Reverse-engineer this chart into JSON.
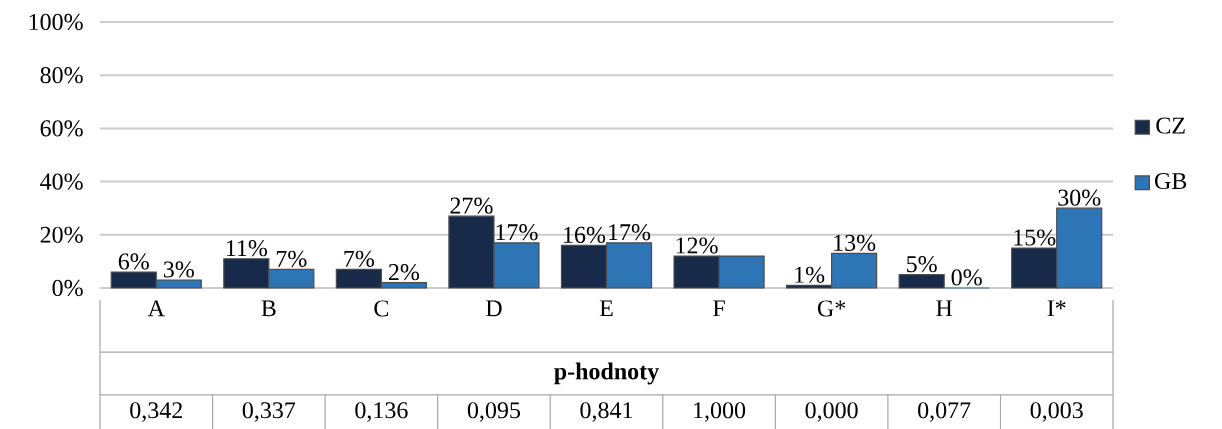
{
  "chart_data": {
    "type": "bar",
    "categories": [
      "A",
      "B",
      "C",
      "D",
      "E",
      "F",
      "G*",
      "H",
      "I*"
    ],
    "series": [
      {
        "name": "CZ",
        "color": "#172a4a",
        "values": [
          6,
          11,
          7,
          27,
          16,
          12,
          1,
          5,
          15
        ],
        "value_labels": [
          "6%",
          "11%",
          "7%",
          "27%",
          "16%",
          "12%",
          "1%",
          "5%",
          "15%"
        ]
      },
      {
        "name": "GB",
        "color": "#2e75b6",
        "values": [
          3,
          7,
          2,
          17,
          17,
          12,
          13,
          0,
          30
        ],
        "value_labels": [
          "3%",
          "7%",
          "2%",
          "17%",
          "17%",
          null,
          "13%",
          "0%",
          "30%"
        ]
      }
    ],
    "ylim": [
      0,
      100
    ],
    "yticks": [
      {
        "value": 0,
        "label": "0%"
      },
      {
        "value": 20,
        "label": "20%"
      },
      {
        "value": 40,
        "label": "40%"
      },
      {
        "value": 60,
        "label": "60%"
      },
      {
        "value": 80,
        "label": "80%"
      },
      {
        "value": 100,
        "label": "100%"
      }
    ],
    "grid": "y",
    "legend": "right",
    "annotations": [
      "p-hodnoty",
      "0,342",
      "0,337",
      "0,136",
      "0,095",
      "0,841",
      "1,000",
      "0,000",
      "0,077",
      "0,003"
    ]
  }
}
